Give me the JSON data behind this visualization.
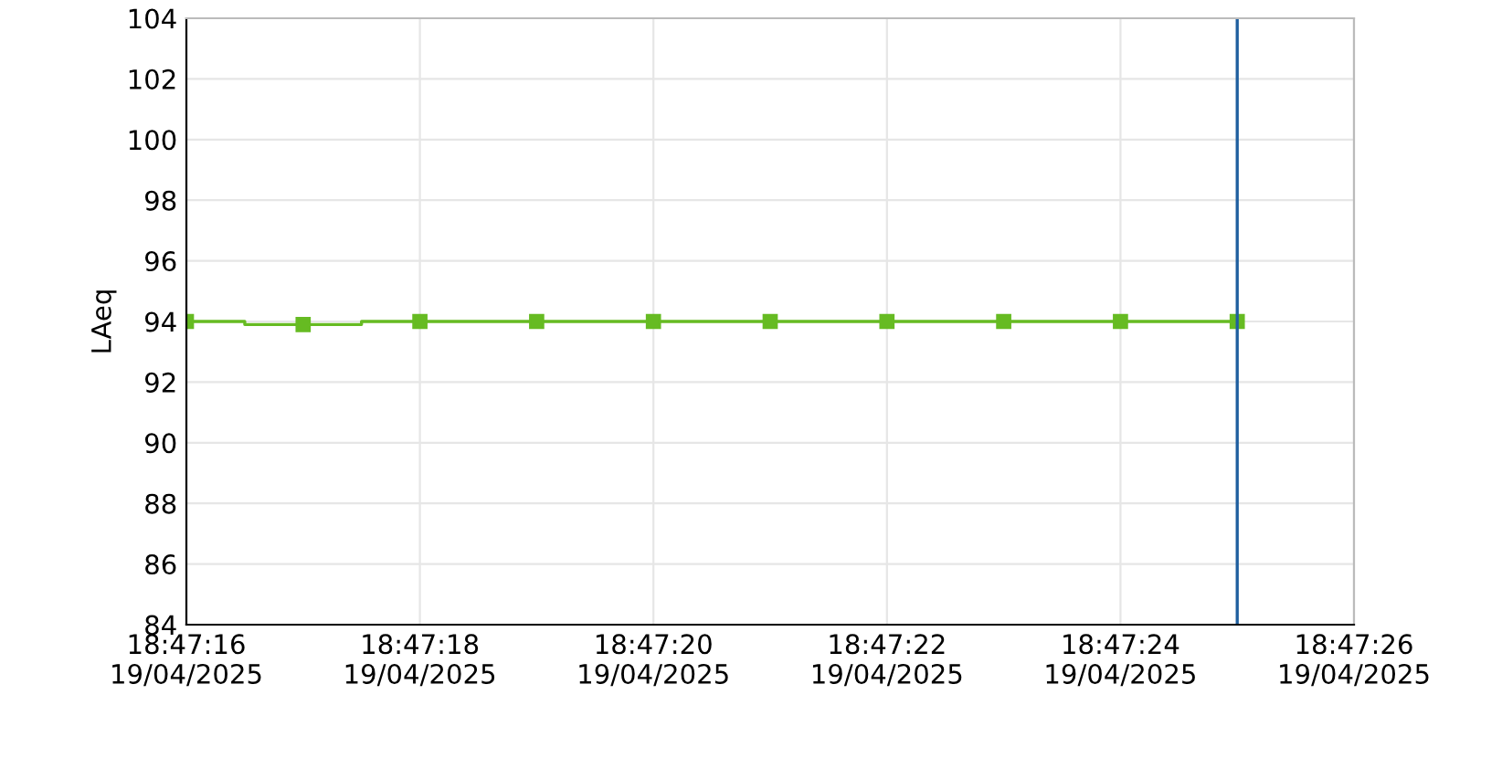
{
  "chart_data": {
    "type": "step",
    "ylabel": "LAeq",
    "x": [
      "2025-04-19T18:47:16",
      "2025-04-19T18:47:17",
      "2025-04-19T18:47:18",
      "2025-04-19T18:47:19",
      "2025-04-19T18:47:20",
      "2025-04-19T18:47:21",
      "2025-04-19T18:47:22",
      "2025-04-19T18:47:23",
      "2025-04-19T18:47:24",
      "2025-04-19T18:47:25"
    ],
    "series": [
      {
        "color": "#66bb22",
        "values": [
          94,
          93.9,
          94,
          94,
          94,
          94,
          94,
          94,
          94,
          94
        ]
      }
    ],
    "marker": "square",
    "line_style": "solid",
    "xlim": [
      "2025-04-19T18:47:16",
      "2025-04-19T18:47:26"
    ],
    "xticks": [
      {
        "value": "2025-04-19T18:47:16",
        "label": "18:47:16\n19/04/2025"
      },
      {
        "value": "2025-04-19T18:47:18",
        "label": "18:47:18\n19/04/2025"
      },
      {
        "value": "2025-04-19T18:47:20",
        "label": "18:47:20\n19/04/2025"
      },
      {
        "value": "2025-04-19T18:47:22",
        "label": "18:47:22\n19/04/2025"
      },
      {
        "value": "2025-04-19T18:47:24",
        "label": "18:47:24\n19/04/2025"
      },
      {
        "value": "2025-04-19T18:47:26",
        "label": "18:47:26\n19/04/2025"
      }
    ],
    "ylim": [
      84,
      104
    ],
    "yticks": [
      84,
      86,
      88,
      90,
      92,
      94,
      96,
      98,
      100,
      102,
      104
    ],
    "grid": true,
    "legend": false,
    "ref_lines": [
      {
        "axis": "x",
        "value": "2025-04-19T18:47:25",
        "label": null,
        "color": "#1f5f9f"
      }
    ]
  }
}
